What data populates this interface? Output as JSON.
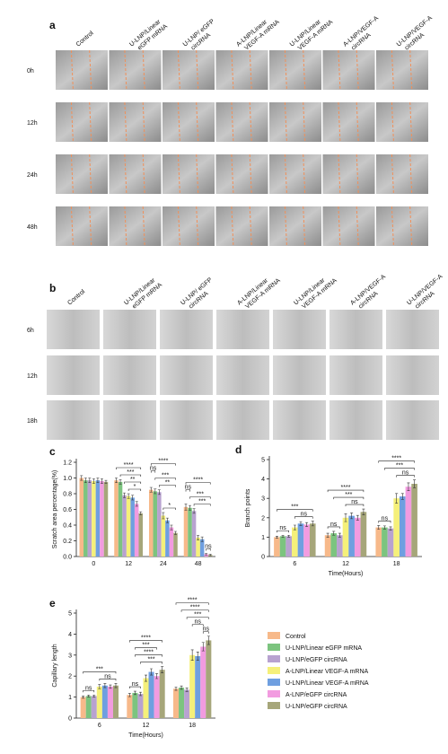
{
  "panel_a": {
    "label": "a",
    "columns": [
      [
        "Control"
      ],
      [
        "U-LNP/Linear",
        "eGFP mRNA"
      ],
      [
        "U-LNP/ eGFP",
        "circRNA"
      ],
      [
        "A-LNP/Linear",
        "VEGF-A mRNA"
      ],
      [
        "U-LNP/Linear",
        "VEGF-A mRNA"
      ],
      [
        "A-LNP/VEGF-A",
        "circRNA"
      ],
      [
        "U-LNP/VEGF-A",
        "circRNA"
      ]
    ],
    "rows": [
      "0h",
      "12h",
      "24h",
      "48h"
    ]
  },
  "panel_b": {
    "label": "b",
    "columns": [
      [
        "Control"
      ],
      [
        "U-LNP/Linear",
        "eGFP mRNA"
      ],
      [
        "U-LNP/ eGFP",
        "circRNA"
      ],
      [
        "A-LNP/Linear",
        "VEGF-A mRNA"
      ],
      [
        "U-LNP/Linear",
        "VEGF-A mRNA"
      ],
      [
        "A-LNP/VEGF-A",
        "circRNA"
      ],
      [
        "U-LNP/VEGF-A",
        "circRNA"
      ]
    ],
    "rows": [
      "6h",
      "12h",
      "18h"
    ]
  },
  "legend": {
    "items": [
      {
        "name": "Control",
        "color": "#f7b98a"
      },
      {
        "name": "U-LNP/Linear eGFP mRNA",
        "color": "#7cc47f"
      },
      {
        "name": "U-LNP/eGFP circRNA",
        "color": "#b8a2d0"
      },
      {
        "name": "A-LNP/Linear VEGF-A mRNA",
        "color": "#f5f07a"
      },
      {
        "name": "U-LNP/Linear VEGF-A mRNA",
        "color": "#6f9fe0"
      },
      {
        "name": "A-LNP/eGFP circRNA",
        "color": "#f29be0"
      },
      {
        "name": "U-LNP/eGFP circRNA",
        "color": "#a6a67a"
      }
    ]
  },
  "chart_data": [
    {
      "type": "bar",
      "panel": "c",
      "ylabel": "Scratch area percentage(%)",
      "categories": [
        "0",
        "12",
        "24",
        "48"
      ],
      "ylim": [
        0,
        1.2
      ],
      "yticks": [
        {
          "value": 0,
          "label": "0.0"
        },
        0.2,
        0.4,
        0.6,
        0.8,
        {
          "value": 1,
          "label": "1.0"
        },
        1.2
      ],
      "series": [
        {
          "values": [
            1.0,
            0.97,
            0.85,
            0.63
          ],
          "errors": [
            0.03,
            0.03,
            0.03,
            0.04
          ]
        },
        {
          "values": [
            0.97,
            0.95,
            0.83,
            0.62
          ],
          "errors": [
            0.03,
            0.03,
            0.03,
            0.03
          ]
        },
        {
          "values": [
            0.97,
            0.78,
            0.82,
            0.58
          ],
          "errors": [
            0.03,
            0.03,
            0.03,
            0.03
          ]
        },
        {
          "values": [
            0.96,
            0.77,
            0.52,
            0.24
          ],
          "errors": [
            0.03,
            0.03,
            0.04,
            0.03
          ]
        },
        {
          "values": [
            0.97,
            0.75,
            0.46,
            0.22
          ],
          "errors": [
            0.03,
            0.03,
            0.03,
            0.03
          ]
        },
        {
          "values": [
            0.96,
            0.67,
            0.37,
            0.03
          ],
          "errors": [
            0.03,
            0.03,
            0.03,
            0.01
          ]
        },
        {
          "values": [
            0.95,
            0.55,
            0.3,
            0.02
          ],
          "errors": [
            0.02,
            0.02,
            0.02,
            0.01
          ]
        }
      ],
      "annotations": [
        {
          "text": "*",
          "category": 1,
          "from": 3,
          "to": 6
        },
        {
          "text": "**",
          "category": 1,
          "from": 2,
          "to": 6
        },
        {
          "text": "***",
          "category": 1,
          "from": 1,
          "to": 6
        },
        {
          "text": "****",
          "category": 1,
          "from": 0,
          "to": 6
        },
        {
          "text": "*",
          "category": 2,
          "from": 3,
          "to": 6
        },
        {
          "text": "**",
          "category": 2,
          "from": 2,
          "to": 6
        },
        {
          "text": "***",
          "category": 2,
          "from": 1,
          "to": 6
        },
        {
          "text": "ns",
          "category": 2,
          "from": 0,
          "to": 1
        },
        {
          "text": "****",
          "category": 2,
          "from": 0,
          "to": 6
        },
        {
          "text": "ns",
          "category": 3,
          "from": 5,
          "to": 6
        },
        {
          "text": "***",
          "category": 3,
          "from": 2,
          "to": 6
        },
        {
          "text": "***",
          "category": 3,
          "from": 1,
          "to": 6
        },
        {
          "text": "ns",
          "category": 3,
          "from": 0,
          "to": 1
        },
        {
          "text": "****",
          "category": 3,
          "from": 0,
          "to": 6
        }
      ]
    },
    {
      "type": "bar",
      "panel": "d",
      "ylabel": "Branch points",
      "xlabel": "Time(Hours)",
      "categories": [
        "6",
        "12",
        "18"
      ],
      "ylim": [
        0,
        5
      ],
      "yticks": [
        0,
        1,
        2,
        3,
        4,
        5
      ],
      "series": [
        {
          "values": [
            1.0,
            1.1,
            1.5
          ],
          "errors": [
            0.05,
            0.1,
            0.1
          ]
        },
        {
          "values": [
            1.05,
            1.2,
            1.5
          ],
          "errors": [
            0.05,
            0.1,
            0.08
          ]
        },
        {
          "values": [
            1.05,
            1.1,
            1.45
          ],
          "errors": [
            0.05,
            0.1,
            0.08
          ]
        },
        {
          "values": [
            1.5,
            2.0,
            3.0
          ],
          "errors": [
            0.12,
            0.2,
            0.25
          ]
        },
        {
          "values": [
            1.7,
            2.1,
            3.1
          ],
          "errors": [
            0.1,
            0.15,
            0.15
          ]
        },
        {
          "values": [
            1.65,
            2.0,
            3.6
          ],
          "errors": [
            0.1,
            0.12,
            0.2
          ]
        },
        {
          "values": [
            1.7,
            2.3,
            3.75
          ],
          "errors": [
            0.12,
            0.15,
            0.2
          ]
        }
      ],
      "annotations": [
        {
          "text": "ns",
          "category": 0,
          "from": 0,
          "to": 2
        },
        {
          "text": "ns",
          "category": 0,
          "from": 3,
          "to": 6
        },
        {
          "text": "***",
          "category": 0,
          "from": 0,
          "to": 6
        },
        {
          "text": "ns",
          "category": 1,
          "from": 0,
          "to": 2
        },
        {
          "text": "ns",
          "category": 1,
          "from": 3,
          "to": 6
        },
        {
          "text": "***",
          "category": 1,
          "from": 1,
          "to": 6
        },
        {
          "text": "****",
          "category": 1,
          "from": 0,
          "to": 6
        },
        {
          "text": "ns",
          "category": 2,
          "from": 0,
          "to": 2
        },
        {
          "text": "ns",
          "category": 2,
          "from": 3,
          "to": 6
        },
        {
          "text": "***",
          "category": 2,
          "from": 1,
          "to": 6
        },
        {
          "text": "****",
          "category": 2,
          "from": 0,
          "to": 6
        }
      ]
    },
    {
      "type": "bar",
      "panel": "e",
      "ylabel": "Capillary length",
      "xlabel": "Time(Hours)",
      "categories": [
        "6",
        "12",
        "18"
      ],
      "ylim": [
        0,
        5
      ],
      "yticks": [
        0,
        1,
        2,
        3,
        4,
        5
      ],
      "series": [
        {
          "values": [
            1.0,
            1.1,
            1.4
          ],
          "errors": [
            0.05,
            0.08,
            0.08
          ]
        },
        {
          "values": [
            1.05,
            1.2,
            1.45
          ],
          "errors": [
            0.05,
            0.08,
            0.08
          ]
        },
        {
          "values": [
            1.05,
            1.15,
            1.35
          ],
          "errors": [
            0.05,
            0.08,
            0.08
          ]
        },
        {
          "values": [
            1.5,
            1.9,
            3.0
          ],
          "errors": [
            0.1,
            0.15,
            0.25
          ]
        },
        {
          "values": [
            1.55,
            2.2,
            2.95
          ],
          "errors": [
            0.1,
            0.15,
            0.2
          ]
        },
        {
          "values": [
            1.5,
            2.0,
            3.4
          ],
          "errors": [
            0.08,
            0.12,
            0.2
          ]
        },
        {
          "values": [
            1.55,
            2.3,
            3.7
          ],
          "errors": [
            0.1,
            0.15,
            0.2
          ]
        }
      ],
      "annotations": [
        {
          "text": "ns",
          "category": 0,
          "from": 0,
          "to": 2
        },
        {
          "text": "ns",
          "category": 0,
          "from": 3,
          "to": 6
        },
        {
          "text": "***",
          "category": 0,
          "from": 0,
          "to": 6
        },
        {
          "text": "ns",
          "category": 1,
          "from": 0,
          "to": 2
        },
        {
          "text": "***",
          "category": 1,
          "from": 2,
          "to": 6
        },
        {
          "text": "****",
          "category": 1,
          "from": 1,
          "to": 6
        },
        {
          "text": "***",
          "category": 1,
          "from": 1,
          "to": 5
        },
        {
          "text": "****",
          "category": 1,
          "from": 0,
          "to": 6
        },
        {
          "text": "ns",
          "category": 2,
          "from": 5,
          "to": 6
        },
        {
          "text": "ns",
          "category": 2,
          "from": 3,
          "to": 5
        },
        {
          "text": "***",
          "category": 2,
          "from": 2,
          "to": 6
        },
        {
          "text": "****",
          "category": 2,
          "from": 1,
          "to": 6
        },
        {
          "text": "****",
          "category": 2,
          "from": 0,
          "to": 6
        }
      ]
    }
  ]
}
